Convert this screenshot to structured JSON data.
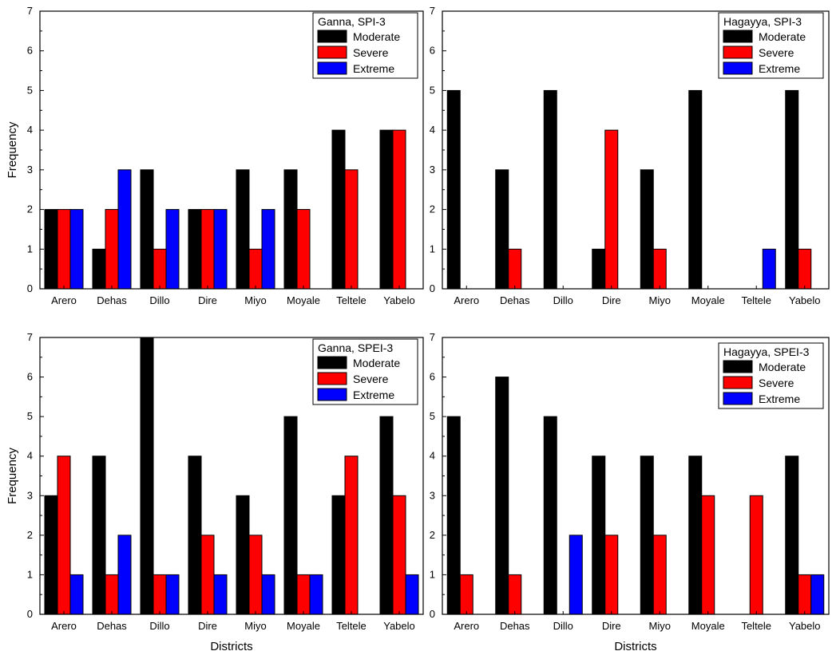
{
  "figure": {
    "xlabel_bottom": "Districts",
    "ylabel": "Frequency"
  },
  "chart_data": [
    {
      "type": "bar",
      "title": "Ganna, SPI-3",
      "categories": [
        "Arero",
        "Dehas",
        "Dillo",
        "Dire",
        "Miyo",
        "Moyale",
        "Teltele",
        "Yabelo"
      ],
      "series": [
        {
          "name": "Moderate",
          "color": "#000000",
          "values": [
            2,
            1,
            3,
            2,
            3,
            3,
            4,
            4
          ]
        },
        {
          "name": "Severe",
          "color": "#ff0000",
          "values": [
            2,
            2,
            1,
            2,
            1,
            2,
            3,
            4
          ]
        },
        {
          "name": "Extreme",
          "color": "#0000ff",
          "values": [
            2,
            3,
            2,
            2,
            2,
            0,
            0,
            0
          ]
        }
      ],
      "ylim": [
        0,
        7
      ],
      "yticks": [
        "0",
        "1",
        "2",
        "3",
        "4",
        "5",
        "6",
        "7"
      ],
      "ylabel": "Frequency",
      "xlabel": "",
      "legend_position": "top-right"
    },
    {
      "type": "bar",
      "title": "Hagayya, SPI-3",
      "categories": [
        "Arero",
        "Dehas",
        "Dillo",
        "Dire",
        "Miyo",
        "Moyale",
        "Teltele",
        "Yabelo"
      ],
      "series": [
        {
          "name": "Moderate",
          "color": "#000000",
          "values": [
            5,
            3,
            5,
            1,
            3,
            5,
            0,
            5
          ]
        },
        {
          "name": "Severe",
          "color": "#ff0000",
          "values": [
            0,
            1,
            0,
            4,
            1,
            0,
            0,
            1
          ]
        },
        {
          "name": "Extreme",
          "color": "#0000ff",
          "values": [
            0,
            0,
            0,
            0,
            0,
            0,
            1,
            0
          ]
        }
      ],
      "ylim": [
        0,
        7
      ],
      "yticks": [
        "0",
        "1",
        "2",
        "3",
        "4",
        "5",
        "6",
        "7"
      ],
      "ylabel": "",
      "xlabel": "",
      "legend_position": "top-right"
    },
    {
      "type": "bar",
      "title": "Ganna, SPEI-3",
      "categories": [
        "Arero",
        "Dehas",
        "Dillo",
        "Dire",
        "Miyo",
        "Moyale",
        "Teltele",
        "Yabelo"
      ],
      "series": [
        {
          "name": "Moderate",
          "color": "#000000",
          "values": [
            3,
            4,
            7,
            4,
            3,
            5,
            3,
            5
          ]
        },
        {
          "name": "Severe",
          "color": "#ff0000",
          "values": [
            4,
            1,
            1,
            2,
            2,
            1,
            4,
            3
          ]
        },
        {
          "name": "Extreme",
          "color": "#0000ff",
          "values": [
            1,
            2,
            1,
            1,
            1,
            1,
            0,
            1
          ]
        }
      ],
      "ylim": [
        0,
        7
      ],
      "yticks": [
        "0",
        "1",
        "2",
        "3",
        "4",
        "5",
        "6",
        "7"
      ],
      "ylabel": "Frequency",
      "xlabel": "Districts",
      "legend_position": "top-right"
    },
    {
      "type": "bar",
      "title": "Hagayya, SPEI-3",
      "categories": [
        "Arero",
        "Dehas",
        "Dillo",
        "Dire",
        "Miyo",
        "Moyale",
        "Teltele",
        "Yabelo"
      ],
      "series": [
        {
          "name": "Moderate",
          "color": "#000000",
          "values": [
            5,
            6,
            5,
            4,
            4,
            4,
            0,
            4
          ]
        },
        {
          "name": "Severe",
          "color": "#ff0000",
          "values": [
            1,
            1,
            0,
            2,
            2,
            3,
            3,
            1
          ]
        },
        {
          "name": "Extreme",
          "color": "#0000ff",
          "values": [
            0,
            0,
            2,
            0,
            0,
            0,
            0,
            1
          ]
        }
      ],
      "ylim": [
        0,
        7
      ],
      "yticks": [
        "0",
        "1",
        "2",
        "3",
        "4",
        "5",
        "6",
        "7"
      ],
      "ylabel": "",
      "xlabel": "Districts",
      "legend_position": "top-right"
    }
  ]
}
